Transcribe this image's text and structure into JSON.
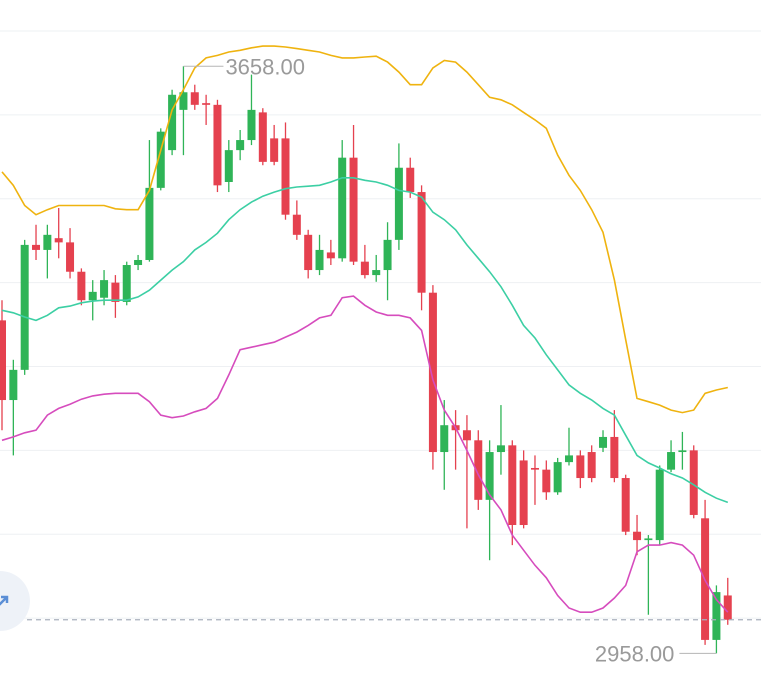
{
  "chart_data": {
    "type": "candlestick",
    "open": [
      3355,
      3260,
      3296,
      3445,
      3439,
      3453,
      3448,
      3413,
      3379,
      3382,
      3400,
      3377,
      3421,
      3427,
      3513,
      3558,
      3606,
      3627,
      3614,
      3612,
      3520,
      3558,
      3570,
      3603,
      3572,
      3572,
      3481,
      3457,
      3415,
      3436,
      3429,
      3549,
      3425,
      3409,
      3415,
      3451,
      3537,
      3508,
      3388,
      3198,
      3230,
      3224,
      3212,
      3141,
      3198,
      3206,
      3188,
      3179,
      3177,
      3150,
      3186,
      3194,
      3198,
      3203,
      3216,
      3167,
      3103,
      3093,
      3093,
      3177,
      3198,
      3200,
      3119,
      2974,
      3027
    ],
    "close": [
      3260,
      3296,
      3445,
      3439,
      3457,
      3448,
      3413,
      3379,
      3389,
      3403,
      3377,
      3421,
      3427,
      3513,
      3580,
      3624,
      3627,
      3612,
      3612,
      3516,
      3558,
      3570,
      3606,
      3544,
      3544,
      3481,
      3457,
      3415,
      3439,
      3429,
      3549,
      3425,
      3409,
      3415,
      3451,
      3537,
      3508,
      3388,
      3198,
      3230,
      3224,
      3212,
      3141,
      3198,
      3206,
      3111,
      3111,
      3177,
      3150,
      3186,
      3194,
      3167,
      3167,
      3216,
      3167,
      3103,
      3093,
      3095,
      3177,
      3198,
      3200,
      3123,
      2974,
      3031,
      2998
    ],
    "high": [
      3379,
      3308,
      3451,
      3469,
      3469,
      3489,
      3465,
      3417,
      3403,
      3415,
      3409,
      3425,
      3433,
      3570,
      3584,
      3630,
      3658,
      3636,
      3624,
      3618,
      3570,
      3582,
      3648,
      3608,
      3588,
      3591,
      3498,
      3463,
      3457,
      3451,
      3570,
      3588,
      3445,
      3433,
      3472,
      3566,
      3549,
      3516,
      3397,
      3260,
      3248,
      3242,
      3224,
      3212,
      3254,
      3212,
      3200,
      3194,
      3188,
      3191,
      3227,
      3200,
      3206,
      3224,
      3248,
      3171,
      3123,
      3099,
      3182,
      3212,
      3222,
      3206,
      3141,
      3039,
      3048
    ],
    "low": [
      3224,
      3194,
      3290,
      3427,
      3405,
      3429,
      3405,
      3373,
      3355,
      3373,
      3358,
      3373,
      3415,
      3425,
      3510,
      3552,
      3552,
      3606,
      3588,
      3508,
      3508,
      3546,
      3564,
      3540,
      3540,
      3475,
      3451,
      3405,
      3409,
      3421,
      3425,
      3421,
      3405,
      3401,
      3379,
      3439,
      3501,
      3367,
      3177,
      3153,
      3177,
      3107,
      3129,
      3069,
      3171,
      3087,
      3107,
      3135,
      3141,
      3147,
      3182,
      3155,
      3162,
      3198,
      3162,
      3099,
      3075,
      3004,
      3087,
      3174,
      3177,
      3119,
      2968,
      2958,
      2992
    ],
    "up_color": "#2fb457",
    "down_color": "#e5414f",
    "series": [
      {
        "color": "#efb30f",
        "values": [
          3532,
          3516,
          3492,
          3481,
          3487,
          3492,
          3492,
          3492,
          3492,
          3492,
          3488,
          3487,
          3487,
          3510,
          3558,
          3606,
          3630,
          3656,
          3668,
          3671,
          3675,
          3677,
          3680,
          3682,
          3682,
          3681,
          3679,
          3677,
          3675,
          3671,
          3668,
          3668,
          3669,
          3670,
          3663,
          3651,
          3636,
          3636,
          3656,
          3665,
          3663,
          3651,
          3636,
          3621,
          3618,
          3612,
          3603,
          3594,
          3584,
          3552,
          3528,
          3510,
          3487,
          3460,
          3403,
          3332,
          3262,
          3258,
          3254,
          3248,
          3245,
          3248,
          3268,
          3272,
          3275
        ]
      },
      {
        "color": "#3ccfa4",
        "values": [
          3367,
          3364,
          3359,
          3355,
          3361,
          3370,
          3372,
          3376,
          3378,
          3379,
          3379,
          3379,
          3383,
          3391,
          3403,
          3415,
          3425,
          3439,
          3448,
          3459,
          3475,
          3487,
          3496,
          3503,
          3508,
          3512,
          3514,
          3515,
          3516,
          3520,
          3525,
          3525,
          3522,
          3520,
          3516,
          3510,
          3508,
          3502,
          3484,
          3475,
          3463,
          3445,
          3429,
          3413,
          3395,
          3373,
          3349,
          3334,
          3314,
          3296,
          3278,
          3268,
          3260,
          3250,
          3242,
          3218,
          3194,
          3185,
          3179,
          3172,
          3167,
          3159,
          3150,
          3143,
          3138
        ]
      },
      {
        "color": "#d64cbd",
        "values": [
          3212,
          3216,
          3221,
          3224,
          3242,
          3250,
          3255,
          3261,
          3265,
          3267,
          3268,
          3268,
          3268,
          3258,
          3242,
          3239,
          3241,
          3246,
          3250,
          3262,
          3290,
          3320,
          3323,
          3326,
          3329,
          3335,
          3341,
          3349,
          3358,
          3361,
          3382,
          3384,
          3373,
          3365,
          3361,
          3361,
          3358,
          3343,
          3284,
          3248,
          3227,
          3200,
          3171,
          3147,
          3129,
          3099,
          3081,
          3063,
          3048,
          3027,
          3012,
          3007,
          3007,
          3012,
          3024,
          3039,
          3079,
          3087,
          3087,
          3090,
          3087,
          3075,
          3045,
          3022,
          3007
        ]
      }
    ],
    "ylim": [
      2925,
      3737
    ],
    "yticks": [
      3700,
      3600,
      3500,
      3400,
      3300,
      3200,
      3100,
      3000
    ],
    "grid": true,
    "high_label": "3658.00",
    "low_label": "2958.00"
  }
}
